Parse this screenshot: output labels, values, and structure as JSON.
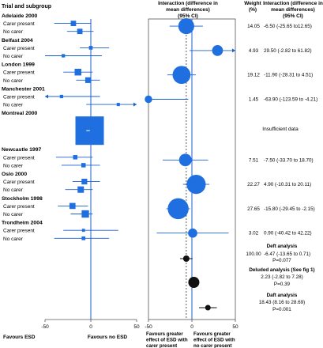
{
  "headers": {
    "trial": "Trial and subgroup",
    "interaction": [
      "Interaction (difference in",
      "mean differences)",
      "(95% CI)"
    ],
    "weight": [
      "Weight",
      "(%)"
    ],
    "interaction_ci": [
      "Interaction (difference in",
      "mean differences)",
      "(95% CI)"
    ]
  },
  "chart_data": [
    {
      "type": "scatter",
      "subtype": "forest-plot",
      "panel": "subgroup mean differences",
      "xlim": [
        -50,
        50
      ],
      "xticks": [
        -50,
        0,
        50
      ],
      "reference_line": 0,
      "xlabel_left": "Favours ESD",
      "xlabel_right": "Favours no ESD",
      "trials": [
        {
          "name": "Adelaide 2000",
          "rows": [
            {
              "label": "Carer present",
              "est": -19,
              "lo": -40,
              "hi": 0,
              "weight": 0.9
            },
            {
              "label": "No carer",
              "est": -12,
              "lo": -26,
              "hi": 3,
              "weight": 0.9
            }
          ]
        },
        {
          "name": "Belfast 2004",
          "rows": [
            {
              "label": "Carer present",
              "est": 0,
              "lo": -12,
              "hi": 20,
              "weight": 0.4
            },
            {
              "label": "No carer",
              "est": -30,
              "lo": -50,
              "hi": 12,
              "weight": 0.3
            }
          ]
        },
        {
          "name": "London 1999",
          "rows": [
            {
              "label": "Carer present",
              "est": -14,
              "lo": -30,
              "hi": 2,
              "weight": 1.3
            },
            {
              "label": "No carer",
              "est": -3,
              "lo": -16,
              "hi": 10,
              "weight": 1.0
            }
          ]
        },
        {
          "name": "Manchester 2001",
          "rows": [
            {
              "label": "Carer present",
              "est": -32,
              "lo": -58,
              "hi": 10,
              "weight": 0.3
            },
            {
              "label": "No carer",
              "est": 30,
              "lo": -5,
              "hi": 60,
              "weight": 0.25
            }
          ]
        },
        {
          "name": "Montreal 2000",
          "big": true,
          "rows": [
            {
              "label": "",
              "est": -3,
              "lo": -5,
              "hi": -1,
              "weight": 6.0
            }
          ]
        },
        {
          "name": "Newcastle 1997",
          "rows": [
            {
              "label": "Carer present",
              "est": -17,
              "lo": -38,
              "hi": 2,
              "weight": 0.6
            },
            {
              "label": "No carer",
              "est": -8,
              "lo": -32,
              "hi": 10,
              "weight": 0.6
            }
          ]
        },
        {
          "name": "Oslo 2000",
          "rows": [
            {
              "label": "Carer present",
              "est": -7,
              "lo": -20,
              "hi": 10,
              "weight": 1.0
            },
            {
              "label": "No carer",
              "est": -11,
              "lo": -28,
              "hi": 2,
              "weight": 1.2
            }
          ]
        },
        {
          "name": "Stockholm 1998",
          "rows": [
            {
              "label": "Carer present",
              "est": -20,
              "lo": -36,
              "hi": -3,
              "weight": 1.1
            },
            {
              "label": "No carer",
              "est": -6,
              "lo": -22,
              "hi": 2,
              "weight": 1.5
            }
          ]
        },
        {
          "name": "Trondheim 2004",
          "rows": [
            {
              "label": "Carer present",
              "est": -8,
              "lo": -30,
              "hi": 30,
              "weight": 0.2
            },
            {
              "label": "No carer",
              "est": -8,
              "lo": -40,
              "hi": 20,
              "weight": 0.4
            }
          ]
        }
      ]
    },
    {
      "type": "scatter",
      "subtype": "forest-plot",
      "panel": "interaction",
      "xlim": [
        -50,
        50
      ],
      "xticks": [
        -50,
        0,
        50
      ],
      "reference_line": 0,
      "dashed_line": -6.47,
      "xlabel_left": "Favours greater effect of ESD with carer present",
      "xlabel_right": "Favours greater effect of ESD with no carer present",
      "rows": [
        {
          "trial": "Adelaide 2000",
          "est": -6.5,
          "lo": -25.65,
          "hi": 12.65,
          "weight": 14.05,
          "label": "14.05",
          "ci_text": "-6.50 (-25.65 to12.65)"
        },
        {
          "trial": "Belfast 2004",
          "est": 29.5,
          "lo": -2.82,
          "hi": 61.82,
          "weight": 4.93,
          "label": "4.93",
          "ci_text": "29.50 (-2.82 to 61.82)"
        },
        {
          "trial": "London 1999",
          "est": -11.9,
          "lo": -28.31,
          "hi": 4.51,
          "weight": 19.12,
          "label": "19.12",
          "ci_text": "-11.90 (-28.31 to 4.51)"
        },
        {
          "trial": "Manchester 2001",
          "est": -63.9,
          "lo": -123.59,
          "hi": -4.21,
          "weight": 1.45,
          "label": "1.45",
          "ci_text": "-63.90 (-123.59 to -4.21)"
        },
        {
          "trial": "Montreal 2000",
          "est": null,
          "label": "",
          "ci_text": "Insufficient data"
        },
        {
          "trial": "Newcastle 1997",
          "est": -7.5,
          "lo": -33.7,
          "hi": 18.7,
          "weight": 7.51,
          "label": "7.51",
          "ci_text": "-7.50 (-33.70 to 18.70)"
        },
        {
          "trial": "Oslo 2000",
          "est": 4.9,
          "lo": -10.31,
          "hi": 20.11,
          "weight": 22.27,
          "label": "22.27",
          "ci_text": "4.90 (-10.31 to 20.11)"
        },
        {
          "trial": "Stockholm 1998",
          "est": -15.8,
          "lo": -29.45,
          "hi": -2.15,
          "weight": 27.65,
          "label": "27.65",
          "ci_text": "-15.80 (-29.45 to -2.15)"
        },
        {
          "trial": "Trondheim 2004",
          "est": 0.9,
          "lo": -40.42,
          "hi": 42.22,
          "weight": 3.02,
          "label": "3.02",
          "ci_text": "0.90 (-40.42 to 42.22)"
        }
      ],
      "summaries": [
        {
          "name": "Deft analysis",
          "est": -6.47,
          "lo": -13.65,
          "hi": 0.71,
          "weight_label": "100.00",
          "ci_text": "-6.47 (-13.65 to 0.71)",
          "p": "P=0.077"
        },
        {
          "name": "Deluded analysis (See fig 1)",
          "est": 2.23,
          "lo": -2.82,
          "hi": 7.28,
          "weight_label": "",
          "ci_text": "2.23 (-2.82 to 7.28)",
          "p": "P=0.39"
        },
        {
          "name": "Daft analysis",
          "est": 18.43,
          "lo": 8.16,
          "hi": 28.69,
          "weight_label": "",
          "ci_text": "18.43 (8.16 to 28.69)",
          "p": "P=0.001"
        }
      ]
    }
  ],
  "colors": {
    "marker": "#1f6fe0",
    "line": "#1a5fd0",
    "summary": "#111111",
    "grid": "#888888"
  }
}
